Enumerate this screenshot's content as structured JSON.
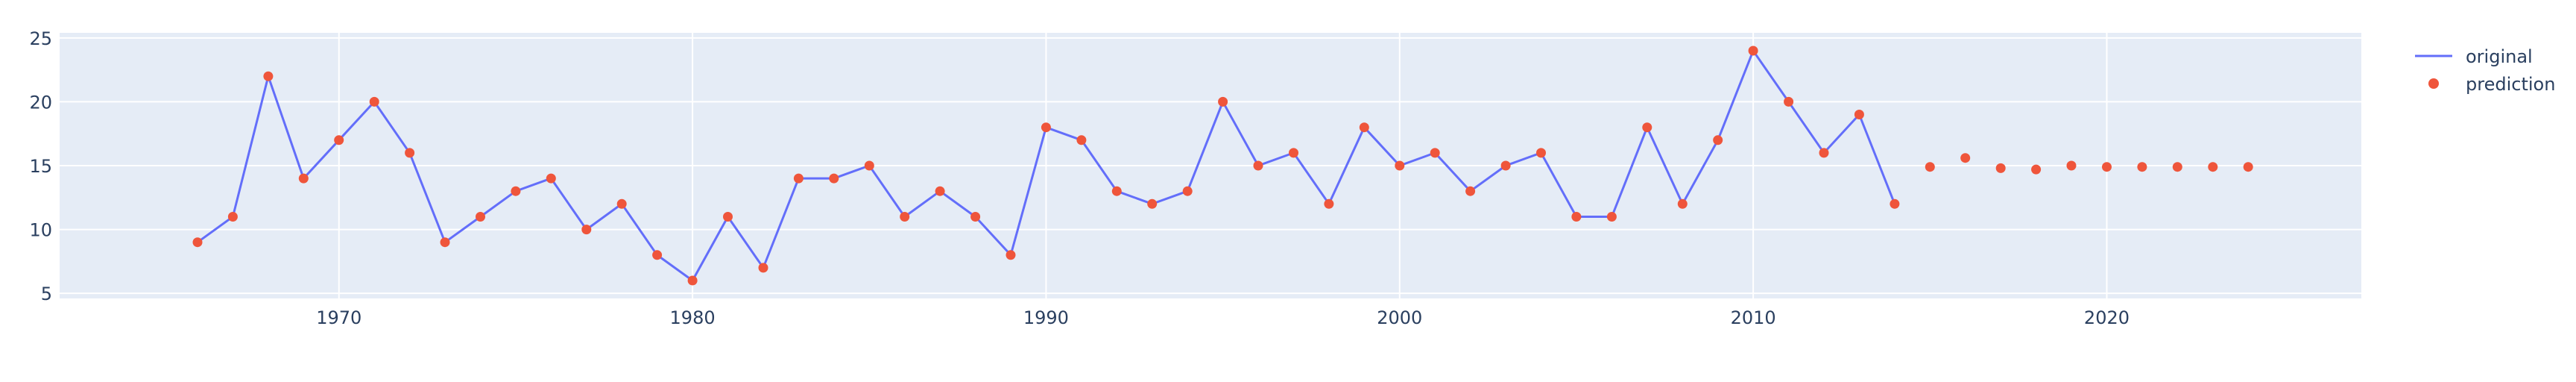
{
  "colors": {
    "plot_background": "#e5ecf6",
    "grid": "#ffffff",
    "text": "#2a3f5f",
    "original_line": "#636efa",
    "prediction_marker": "#ef553b"
  },
  "legend": {
    "placement": "top-right",
    "items": [
      {
        "label": "original",
        "symbol": "line"
      },
      {
        "label": "prediction",
        "symbol": "marker"
      }
    ]
  },
  "chart_data": {
    "type": "line",
    "title": "",
    "xlabel": "",
    "ylabel": "",
    "grid": true,
    "xlim": [
      1962.1,
      2027.2
    ],
    "ylim": [
      4.6,
      25.4
    ],
    "xticks": [
      1970,
      1980,
      1990,
      2000,
      2010,
      2020
    ],
    "yticks": [
      5,
      10,
      15,
      20,
      25
    ],
    "series": [
      {
        "name": "original",
        "mode": "lines",
        "x": [
          1966,
          1967,
          1968,
          1969,
          1970,
          1971,
          1972,
          1973,
          1974,
          1975,
          1976,
          1977,
          1978,
          1979,
          1980,
          1981,
          1982,
          1983,
          1984,
          1985,
          1986,
          1987,
          1988,
          1989,
          1990,
          1991,
          1992,
          1993,
          1994,
          1995,
          1996,
          1997,
          1998,
          1999,
          2000,
          2001,
          2002,
          2003,
          2004,
          2005,
          2006,
          2007,
          2008,
          2009,
          2010,
          2011,
          2012,
          2013,
          2014
        ],
        "y": [
          9,
          11,
          22,
          14,
          17,
          20,
          16,
          9,
          11,
          13,
          14,
          10,
          12,
          8,
          6,
          11,
          7,
          14,
          14,
          15,
          11,
          13,
          11,
          8,
          18,
          17,
          13,
          12,
          13,
          20,
          15,
          16,
          12,
          18,
          15,
          16,
          13,
          15,
          16,
          11,
          11,
          18,
          12,
          17,
          24,
          20,
          16,
          19,
          12
        ]
      },
      {
        "name": "prediction",
        "mode": "markers",
        "x": [
          1966,
          1967,
          1968,
          1969,
          1970,
          1971,
          1972,
          1973,
          1974,
          1975,
          1976,
          1977,
          1978,
          1979,
          1980,
          1981,
          1982,
          1983,
          1984,
          1985,
          1986,
          1987,
          1988,
          1989,
          1990,
          1991,
          1992,
          1993,
          1994,
          1995,
          1996,
          1997,
          1998,
          1999,
          2000,
          2001,
          2002,
          2003,
          2004,
          2005,
          2006,
          2007,
          2008,
          2009,
          2010,
          2011,
          2012,
          2013,
          2014,
          2015,
          2016,
          2017,
          2018,
          2019,
          2020,
          2021,
          2022,
          2023,
          2024
        ],
        "y": [
          9,
          11,
          22,
          14,
          17,
          20,
          16,
          9,
          11,
          13,
          14,
          10,
          12,
          8,
          6,
          11,
          7,
          14,
          14,
          15,
          11,
          13,
          11,
          8,
          18,
          17,
          13,
          12,
          13,
          20,
          15,
          16,
          12,
          18,
          15,
          16,
          13,
          15,
          16,
          11,
          11,
          18,
          12,
          17,
          24,
          20,
          16,
          19,
          12,
          14.9,
          15.6,
          14.8,
          14.7,
          15.0,
          14.9,
          14.9,
          14.9,
          14.9,
          14.9
        ]
      }
    ]
  }
}
